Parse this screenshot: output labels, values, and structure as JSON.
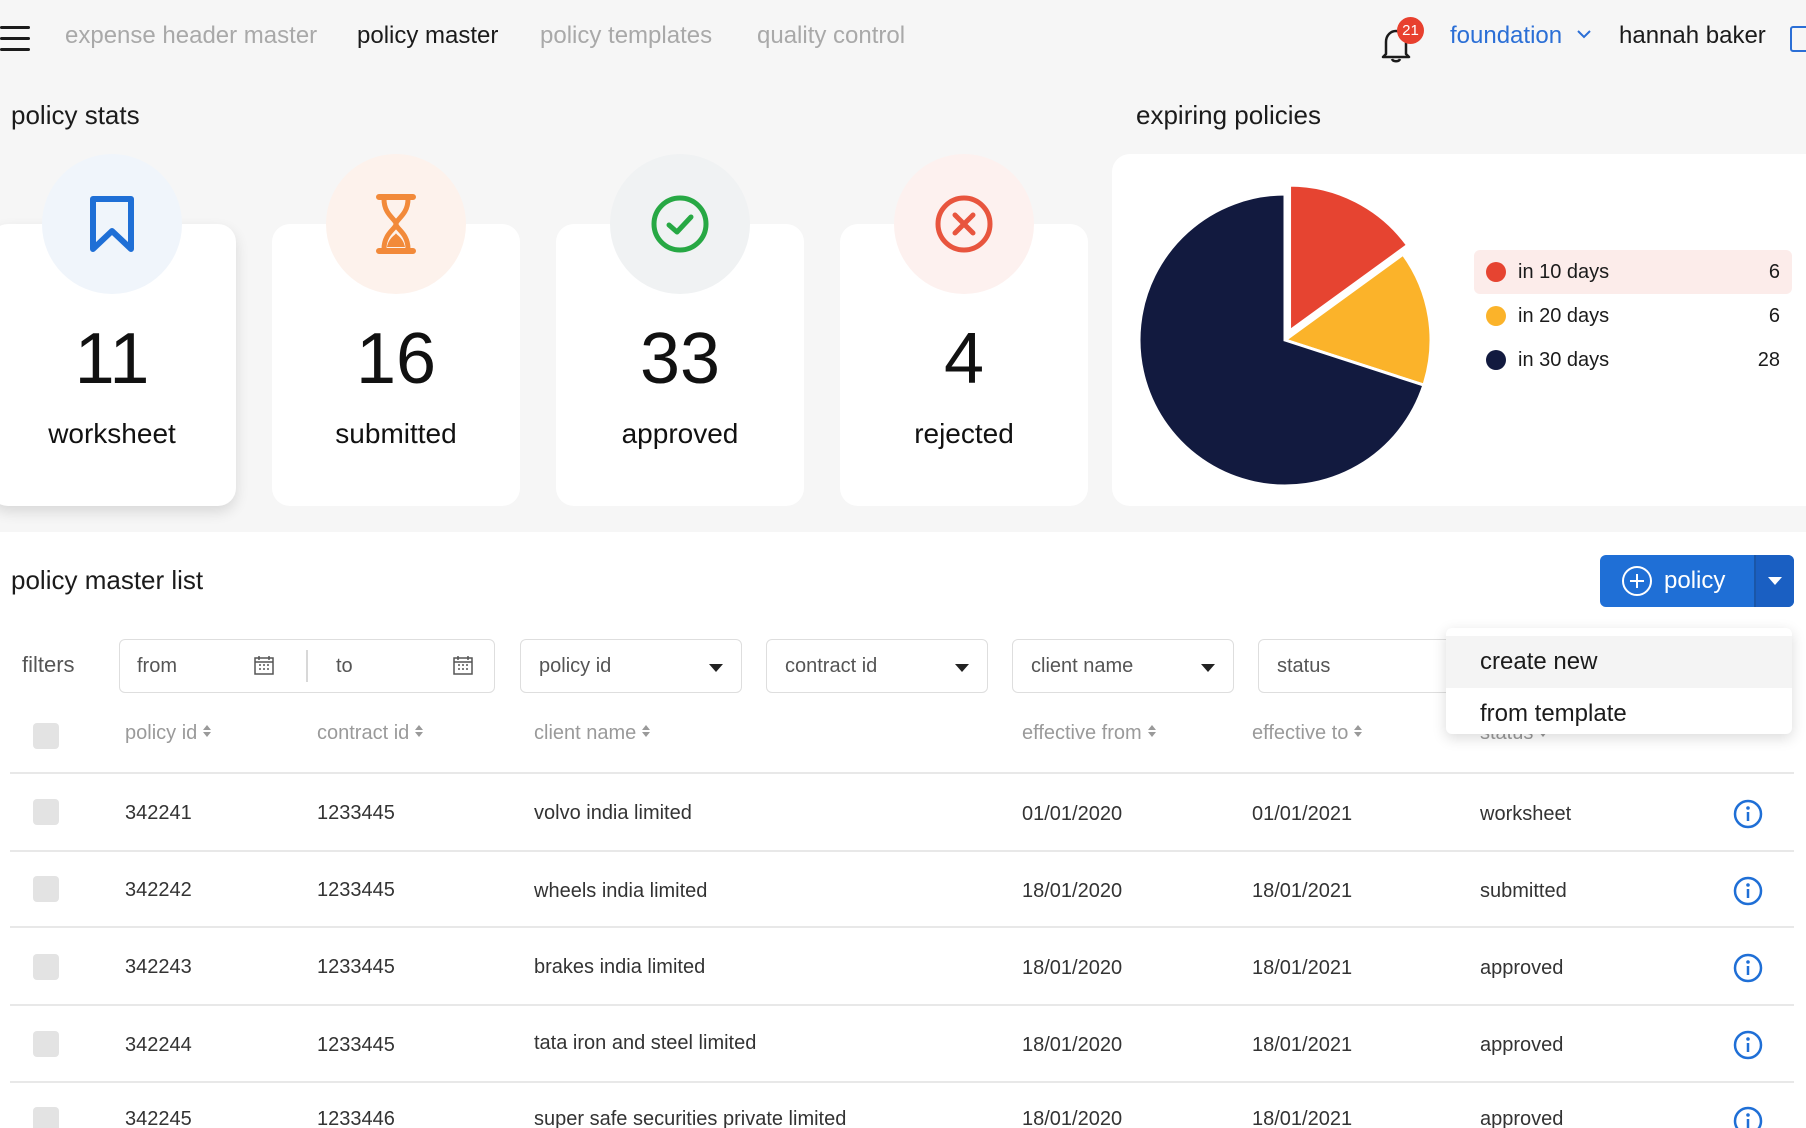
{
  "nav": {
    "tabs": [
      {
        "label": "expense header master",
        "active": false
      },
      {
        "label": "policy master",
        "active": true
      },
      {
        "label": "policy templates",
        "active": false
      },
      {
        "label": "quality control",
        "active": false
      }
    ],
    "notification_count": "21",
    "org_selector": "foundation",
    "user_name": "hannah baker"
  },
  "stats": {
    "title": "policy stats",
    "cards": [
      {
        "value": "11",
        "label": "worksheet",
        "icon": "bookmark-icon",
        "color": "#1f6fd6"
      },
      {
        "value": "16",
        "label": "submitted",
        "icon": "hourglass-icon",
        "color": "#f28a3a"
      },
      {
        "value": "33",
        "label": "approved",
        "icon": "check-circle-icon",
        "color": "#27a844"
      },
      {
        "value": "4",
        "label": "rejected",
        "icon": "x-circle-icon",
        "color": "#e8553e"
      }
    ]
  },
  "expiring": {
    "title": "expiring policies",
    "legend": [
      {
        "label": "in 10 days",
        "value": "6",
        "color": "#e64431"
      },
      {
        "label": "in 20 days",
        "value": "6",
        "color": "#fbb32a"
      },
      {
        "label": "in 30 days",
        "value": "28",
        "color": "#121a3f"
      }
    ]
  },
  "list": {
    "title": "policy master list",
    "add_button_label": "policy",
    "dropdown": [
      "create new",
      "from template"
    ],
    "filters_label": "filters",
    "filters": {
      "from": "from",
      "to": "to",
      "policy_id": "policy id",
      "contract_id": "contract id",
      "client_name": "client name",
      "status": "status"
    },
    "columns": {
      "policy_id": "policy id",
      "contract_id": "contract id",
      "client_name": "client name",
      "effective_from": "effective from",
      "effective_to": "effective to",
      "status": "status"
    },
    "rows": [
      {
        "policy_id": "342241",
        "contract_id": "1233445",
        "client_name": "volvo india limited",
        "effective_from": "01/01/2020",
        "effective_to": "01/01/2021",
        "status": "worksheet"
      },
      {
        "policy_id": "342242",
        "contract_id": "1233445",
        "client_name": "wheels india limited",
        "effective_from": "18/01/2020",
        "effective_to": "18/01/2021",
        "status": "submitted"
      },
      {
        "policy_id": "342243",
        "contract_id": "1233445",
        "client_name": "brakes india limited",
        "effective_from": "18/01/2020",
        "effective_to": "18/01/2021",
        "status": "approved"
      },
      {
        "policy_id": "342244",
        "contract_id": "1233445",
        "client_name": "tata iron and steel limited",
        "effective_from": "18/01/2020",
        "effective_to": "18/01/2021",
        "status": "approved"
      },
      {
        "policy_id": "342245",
        "contract_id": "1233446",
        "client_name": "super safe securities private limited",
        "effective_from": "18/01/2020",
        "effective_to": "18/01/2021",
        "status": "approved"
      }
    ]
  }
}
